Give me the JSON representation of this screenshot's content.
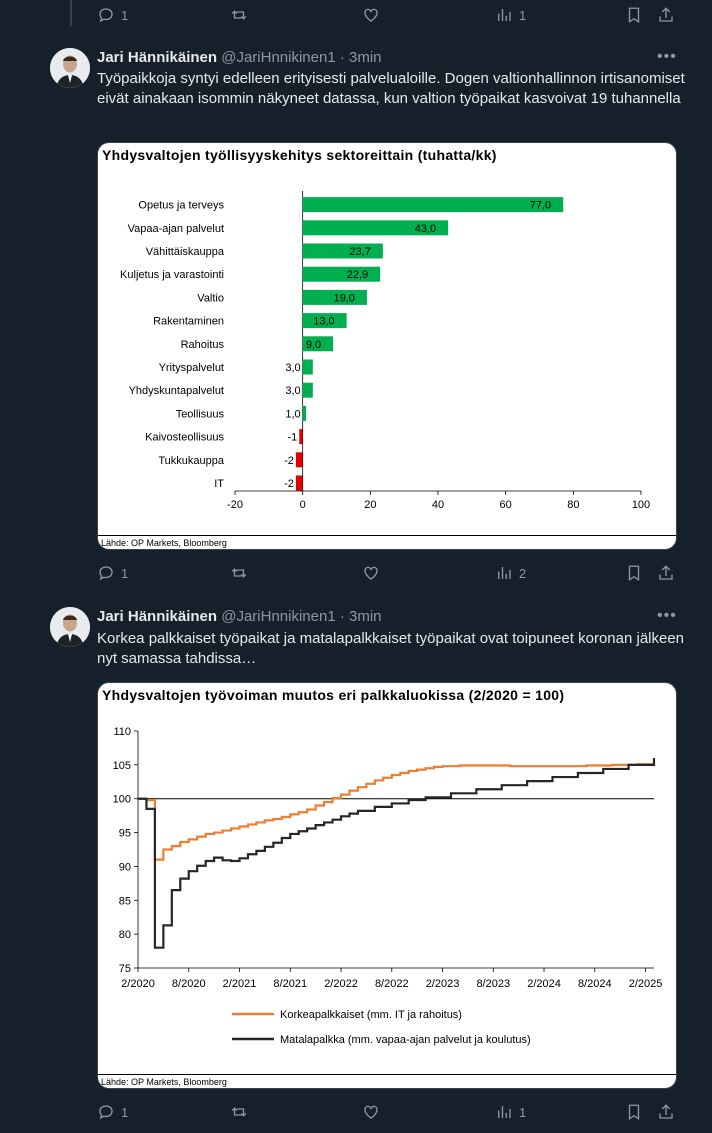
{
  "top_actions": {
    "replies": "1",
    "views": "1"
  },
  "tweets": [
    {
      "name": "Jari Hännikäinen",
      "handle": "@JariHnnikinen1",
      "time": "· 3min",
      "text": "Työpaikkoja syntyi edelleen erityisesti palvelualoille. Dogen valtionhallinnon irtisanomiset eivät ainakaan isommin näkyneet datassa, kun valtion työpaikat kasvoivat 19 tuhannella",
      "card_title": "Yhdysvaltojen työllisyyskehitys sektoreittain (tuhatta/kk)",
      "card_source": "Lähde: OP Markets, Bloomberg",
      "actions": {
        "replies": "1",
        "views": "2"
      }
    },
    {
      "name": "Jari Hännikäinen",
      "handle": "@JariHnnikinen1",
      "time": "· 3min",
      "text": "Korkea palkkaiset työpaikat ja matalapalkkaiset työpaikat ovat toipuneet koronan jälkeen nyt samassa tahdissa…",
      "card_title": "Yhdysvaltojen työvoiman muutos eri palkkaluokissa (2/2020 = 100)",
      "card_source": "Lähde: OP Markets, Bloomberg",
      "actions": {
        "replies": "1",
        "views": "1"
      }
    }
  ],
  "chart_data": [
    {
      "type": "bar",
      "orientation": "horizontal",
      "title": "Yhdysvaltojen työllisyyskehitys sektoreittain (tuhatta/kk)",
      "categories": [
        "Opetus ja terveys",
        "Vapaa-ajan palvelut",
        "Vähittäiskauppa",
        "Kuljetus ja varastointi",
        "Valtio",
        "Rakentaminen",
        "Rahoitus",
        "Yrityspalvelut",
        "Yhdyskuntapalvelut",
        "Teollisuus",
        "Kaivosteollisuus",
        "Tukkukauppa",
        "IT"
      ],
      "values": [
        77.0,
        43.0,
        23.7,
        22.9,
        19.0,
        13.0,
        9.0,
        3.0,
        3.0,
        1.0,
        -1,
        -2,
        -2
      ],
      "value_labels": [
        "77,0",
        "43,0",
        "23,7",
        "22,9",
        "19,0",
        "13,0",
        "9,0",
        "3,0",
        "3,0",
        "1,0",
        "-1",
        "-2",
        "-2"
      ],
      "xlim": [
        -20,
        100
      ],
      "xticks": [
        "-20",
        "0",
        "20",
        "40",
        "60",
        "80",
        "100"
      ],
      "colors": {
        "positive": "#00b050",
        "negative": "#e00000"
      }
    },
    {
      "type": "line",
      "title": "Yhdysvaltojen työvoiman muutos eri palkkaluokissa (2/2020 = 100)",
      "ylim": [
        75,
        110
      ],
      "yticks": [
        "75",
        "80",
        "85",
        "90",
        "95",
        "100",
        "105",
        "110"
      ],
      "xticks": [
        "2/2020",
        "8/2020",
        "2/2021",
        "8/2021",
        "2/2022",
        "8/2022",
        "2/2023",
        "8/2023",
        "2/2024",
        "8/2024",
        "2/2025"
      ],
      "x_start": "2020-02",
      "x_end": "2025-03",
      "reference_line": 100,
      "series": [
        {
          "name": "Korkeapalkkaiset (mm. IT ja rahoitus)",
          "color": "#ed7d31",
          "points": [
            [
              "2020-02",
              100
            ],
            [
              "2020-03",
              99.8
            ],
            [
              "2020-04",
              91
            ],
            [
              "2020-05",
              92.5
            ],
            [
              "2020-06",
              93
            ],
            [
              "2020-07",
              93.6
            ],
            [
              "2020-08",
              94
            ],
            [
              "2020-09",
              94.4
            ],
            [
              "2020-10",
              94.8
            ],
            [
              "2020-11",
              95
            ],
            [
              "2020-12",
              95.3
            ],
            [
              "2021-01",
              95.6
            ],
            [
              "2021-02",
              95.9
            ],
            [
              "2021-03",
              96.2
            ],
            [
              "2021-04",
              96.5
            ],
            [
              "2021-05",
              96.8
            ],
            [
              "2021-06",
              97
            ],
            [
              "2021-07",
              97.3
            ],
            [
              "2021-08",
              97.7
            ],
            [
              "2021-09",
              98
            ],
            [
              "2021-10",
              98.4
            ],
            [
              "2021-11",
              99
            ],
            [
              "2021-12",
              99.5
            ],
            [
              "2022-01",
              100.1
            ],
            [
              "2022-02",
              100.6
            ],
            [
              "2022-03",
              101.2
            ],
            [
              "2022-04",
              101.7
            ],
            [
              "2022-05",
              102.2
            ],
            [
              "2022-06",
              102.7
            ],
            [
              "2022-07",
              103.1
            ],
            [
              "2022-08",
              103.5
            ],
            [
              "2022-09",
              103.8
            ],
            [
              "2022-10",
              104.1
            ],
            [
              "2022-11",
              104.3
            ],
            [
              "2022-12",
              104.5
            ],
            [
              "2023-01",
              104.7
            ],
            [
              "2023-02",
              104.8
            ],
            [
              "2023-04",
              104.9
            ],
            [
              "2023-07",
              104.9
            ],
            [
              "2023-10",
              104.8
            ],
            [
              "2024-01",
              104.8
            ],
            [
              "2024-04",
              104.8
            ],
            [
              "2024-07",
              104.9
            ],
            [
              "2024-10",
              105
            ],
            [
              "2025-01",
              105.1
            ],
            [
              "2025-03",
              105.2
            ]
          ]
        },
        {
          "name": "Matalapalkka (mm. vapaa-ajan palvelut ja koulutus)",
          "color": "#262626",
          "points": [
            [
              "2020-02",
              100
            ],
            [
              "2020-03",
              98.5
            ],
            [
              "2020-04",
              78
            ],
            [
              "2020-05",
              81.3
            ],
            [
              "2020-06",
              86.5
            ],
            [
              "2020-07",
              88.2
            ],
            [
              "2020-08",
              89.3
            ],
            [
              "2020-09",
              90.1
            ],
            [
              "2020-10",
              90.8
            ],
            [
              "2020-11",
              91.3
            ],
            [
              "2020-12",
              90.9
            ],
            [
              "2021-01",
              90.8
            ],
            [
              "2021-02",
              91.2
            ],
            [
              "2021-03",
              91.8
            ],
            [
              "2021-04",
              92.3
            ],
            [
              "2021-05",
              92.9
            ],
            [
              "2021-06",
              93.5
            ],
            [
              "2021-07",
              94.2
            ],
            [
              "2021-08",
              94.8
            ],
            [
              "2021-09",
              95.2
            ],
            [
              "2021-10",
              95.6
            ],
            [
              "2021-11",
              96.1
            ],
            [
              "2021-12",
              96.5
            ],
            [
              "2022-01",
              96.9
            ],
            [
              "2022-02",
              97.4
            ],
            [
              "2022-03",
              97.8
            ],
            [
              "2022-04",
              98.2
            ],
            [
              "2022-06",
              98.8
            ],
            [
              "2022-08",
              99.3
            ],
            [
              "2022-10",
              99.8
            ],
            [
              "2022-12",
              100.2
            ],
            [
              "2023-03",
              100.8
            ],
            [
              "2023-06",
              101.4
            ],
            [
              "2023-09",
              102
            ],
            [
              "2023-12",
              102.6
            ],
            [
              "2024-03",
              103.2
            ],
            [
              "2024-06",
              103.8
            ],
            [
              "2024-09",
              104.4
            ],
            [
              "2024-12",
              105
            ],
            [
              "2025-03",
              106
            ]
          ]
        }
      ]
    }
  ]
}
